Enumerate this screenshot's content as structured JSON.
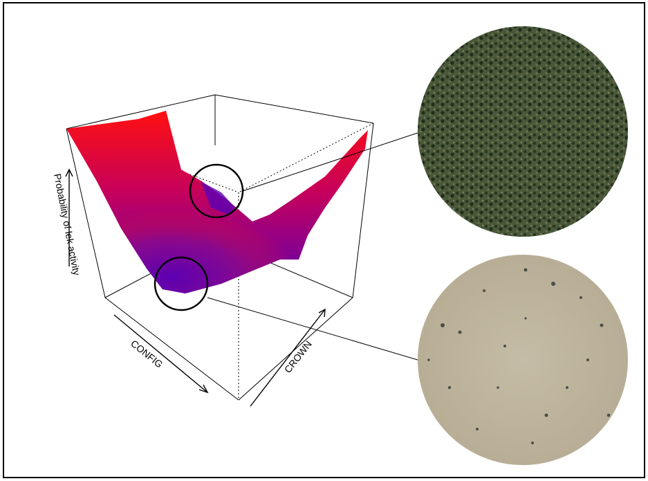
{
  "figure": {
    "axes": {
      "x_label": "CONFIG",
      "y_label": "CROWN",
      "z_label": "Probability of lek activity"
    },
    "surface_colors": {
      "high": "#ff0000",
      "low": "#5a00b4"
    },
    "insets": [
      {
        "name": "dense-woodland-aerial",
        "description_color": "#3d4a2c"
      },
      {
        "name": "sparse-woodland-aerial",
        "description_color": "#bdb39c"
      }
    ]
  }
}
